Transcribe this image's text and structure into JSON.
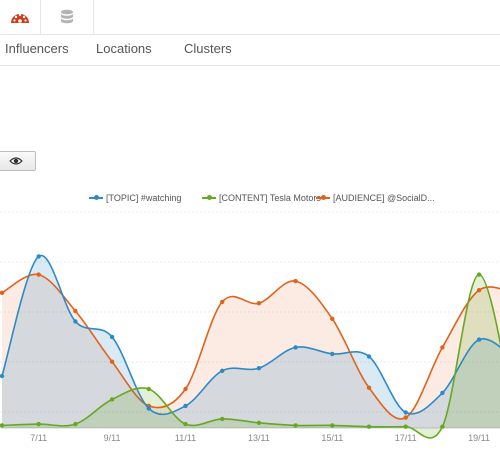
{
  "tabs": [
    "Influencers",
    "Locations",
    "Clusters"
  ],
  "icons": {
    "dashboard": "dashboard-icon",
    "database": "database-icon",
    "eye": "eye-icon"
  },
  "colors": {
    "topic": "#2d8ac7",
    "content": "#66a821",
    "audience": "#e0621d",
    "dashboard_red": "#d43b16"
  },
  "chart_data": {
    "type": "area",
    "x": [
      "6/11",
      "7/11",
      "8/11",
      "9/11",
      "10/11",
      "11/11",
      "12/11",
      "13/11",
      "14/11",
      "15/11",
      "16/11",
      "17/11",
      "18/11",
      "19/11",
      "20/11"
    ],
    "xticks": [
      "7/11",
      "9/11",
      "11/11",
      "13/11",
      "15/11",
      "17/11",
      "19/11"
    ],
    "series": [
      {
        "name": "[TOPIC] #watching",
        "values": [
          40,
          132,
          82,
          70,
          15,
          17,
          44,
          46,
          62,
          57,
          55,
          12,
          27,
          68,
          52
        ]
      },
      {
        "name": "[CONTENT] Tesla Motors",
        "values": [
          2,
          3,
          3,
          22,
          30,
          3,
          7,
          4,
          2,
          2,
          1,
          1,
          1,
          118,
          3
        ]
      },
      {
        "name": "[AUDIENCE] @SocialD...",
        "values": [
          104,
          118,
          90,
          51,
          17,
          30,
          97,
          96,
          113,
          84,
          31,
          8,
          62,
          106,
          103
        ]
      }
    ]
  }
}
